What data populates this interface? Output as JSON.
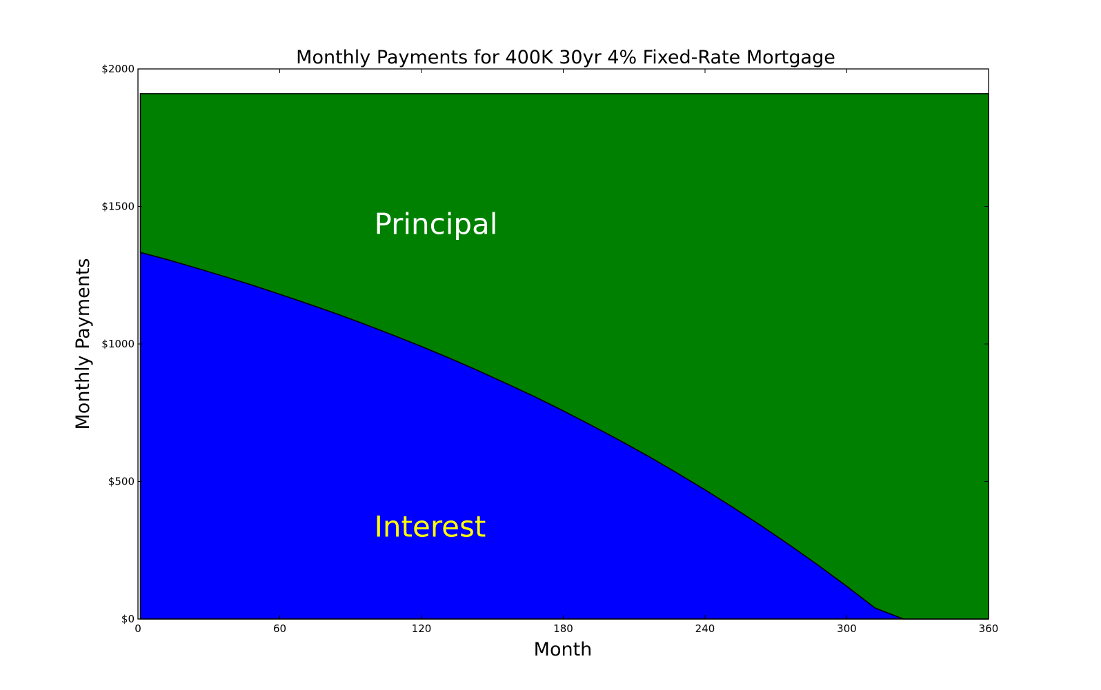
{
  "chart_data": {
    "type": "area",
    "stacked": true,
    "title": "Monthly Payments for 400K  30yr  4% Fixed-Rate Mortgage",
    "xlabel": "Month",
    "ylabel": "Monthly Payments",
    "xlim": [
      0,
      360
    ],
    "ylim": [
      0,
      2000
    ],
    "x_ticks": [
      0,
      60,
      120,
      180,
      240,
      300,
      360
    ],
    "x_tick_labels": [
      "0",
      "60",
      "120",
      "180",
      "240",
      "300",
      "360"
    ],
    "y_ticks": [
      0,
      500,
      1000,
      1500,
      2000
    ],
    "y_tick_labels": [
      "$0",
      "$500",
      "$1000",
      "$1500",
      "$2000"
    ],
    "grid": false,
    "loan": {
      "principal": 400000,
      "annual_rate": 0.04,
      "months": 360,
      "monthly_payment": 1909.66
    },
    "months": [
      1,
      12,
      24,
      36,
      48,
      60,
      72,
      84,
      96,
      108,
      120,
      132,
      144,
      156,
      168,
      180,
      192,
      204,
      216,
      228,
      240,
      252,
      264,
      276,
      288,
      300,
      312,
      324,
      336,
      348,
      360
    ],
    "series": [
      {
        "name": "Interest",
        "color": "#0000ff",
        "values": [
          1333,
          1308,
          1278,
          1247,
          1215,
          1181,
          1146,
          1110,
          1072,
          1032,
          991,
          948,
          903,
          856,
          808,
          757,
          704,
          649,
          592,
          532,
          470,
          405,
          338,
          268,
          195,
          119,
          40,
          0,
          0,
          0,
          0
        ]
      },
      {
        "name": "Principal",
        "color": "#008000",
        "values": [
          577,
          602,
          632,
          663,
          695,
          729,
          764,
          800,
          838,
          878,
          919,
          962,
          1007,
          1054,
          1102,
          1153,
          1206,
          1261,
          1318,
          1378,
          1440,
          1505,
          1572,
          1642,
          1715,
          1791,
          1870,
          1910,
          1910,
          1910,
          1910
        ]
      }
    ],
    "annotations": [
      {
        "text": "Principal",
        "x": 100,
        "y": 1400,
        "color": "#ffffff"
      },
      {
        "text": "Interest",
        "x": 100,
        "y": 300,
        "color": "#ffff00"
      }
    ]
  }
}
